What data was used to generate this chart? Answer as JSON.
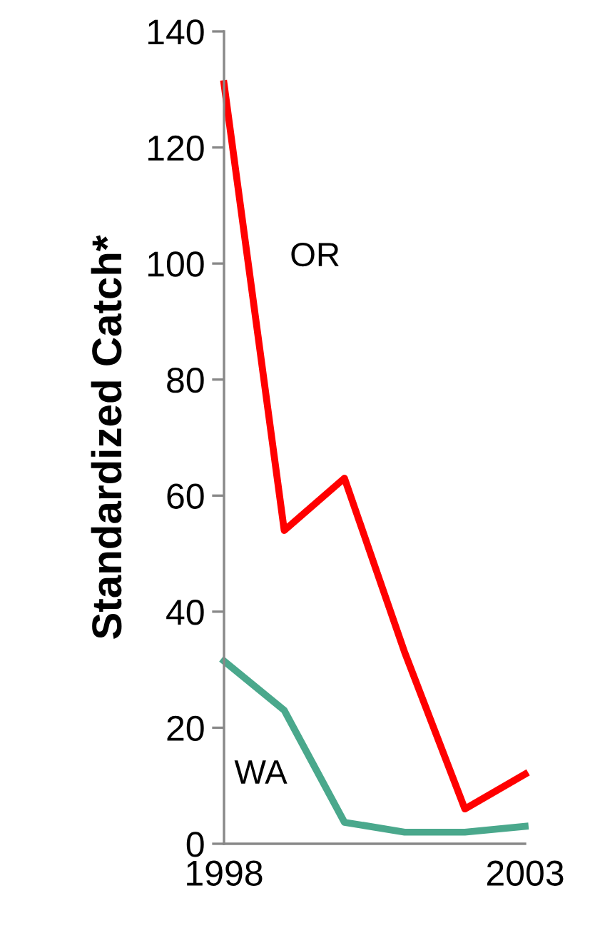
{
  "chart_data": {
    "type": "line",
    "ylabel": "Standardized Catch*",
    "x": [
      1998,
      1999,
      2000,
      2001,
      2002,
      2003
    ],
    "series": [
      {
        "name": "OR",
        "color": "#ff0000",
        "values": [
          131,
          54,
          63,
          33,
          6,
          12
        ]
      },
      {
        "name": "WA",
        "color": "#4aa88c",
        "values": [
          31.5,
          23,
          3.7,
          2,
          2,
          3
        ]
      }
    ],
    "xlim": [
      1998,
      2003
    ],
    "xticks": [
      1998,
      2003
    ],
    "ylim": [
      0,
      140
    ],
    "yticks": [
      0,
      20,
      40,
      60,
      80,
      100,
      120,
      140
    ],
    "grid": false,
    "legend": false,
    "marker": "none",
    "line_style": "solid"
  }
}
